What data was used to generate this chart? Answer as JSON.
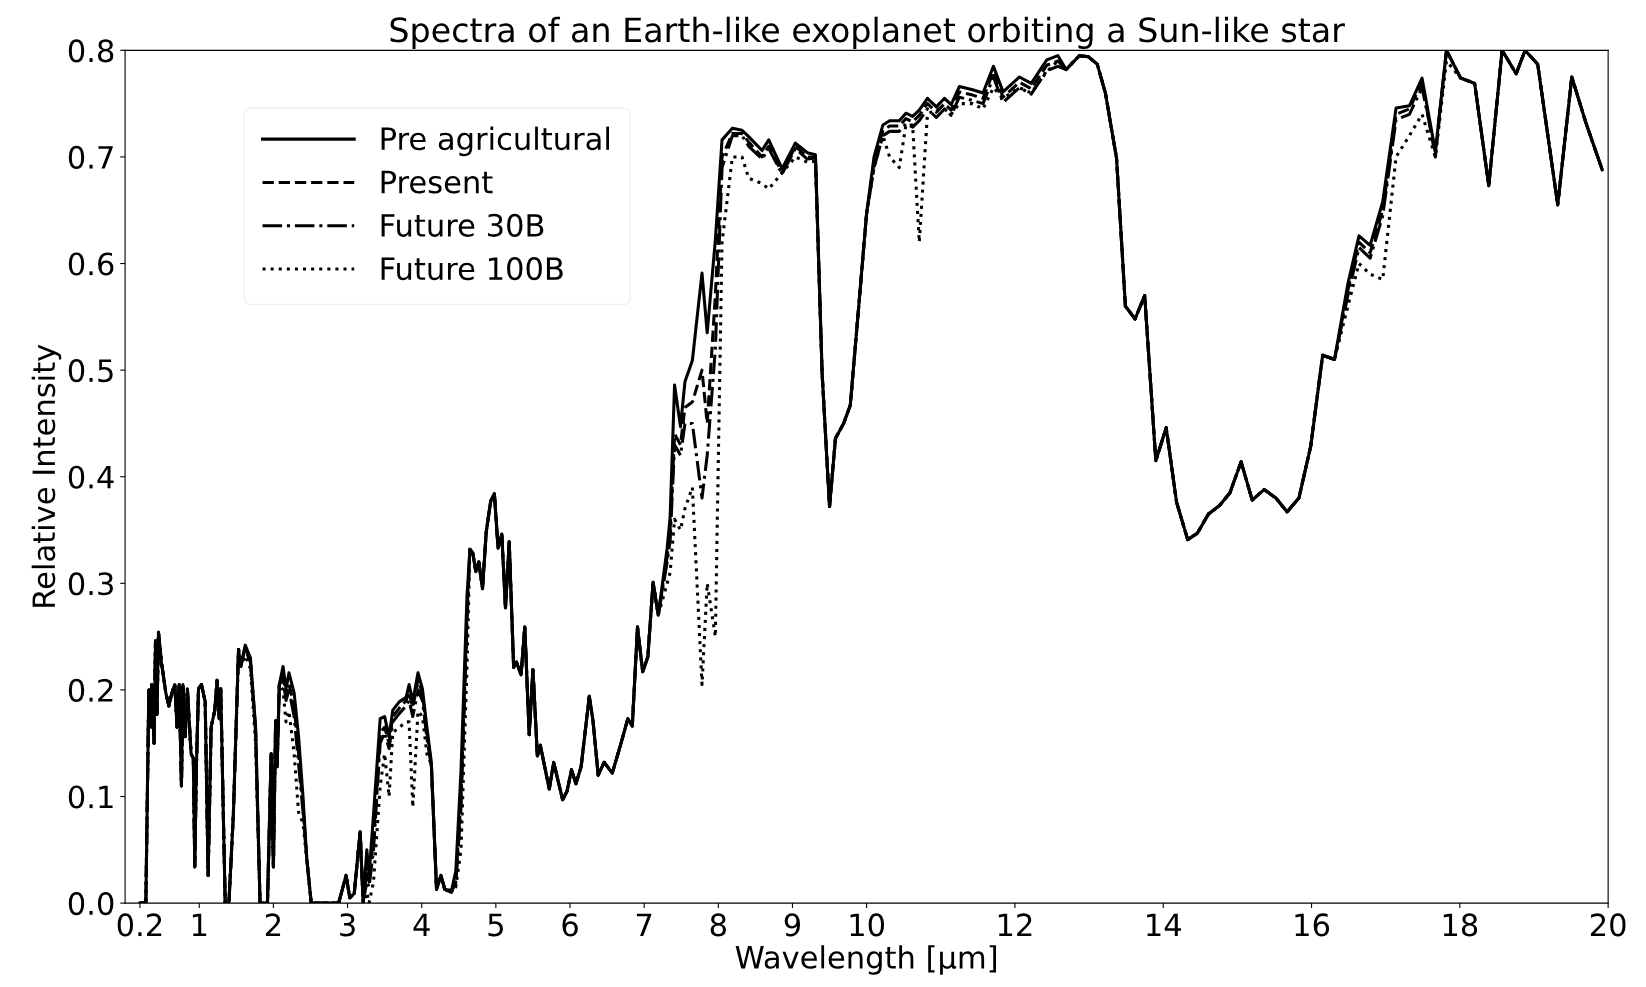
{
  "chart_data": {
    "type": "line",
    "title": "Spectra of an Earth-like exoplanet orbiting a Sun-like star",
    "xlabel": "Wavelength [μm]",
    "ylabel": "Relative Intensity",
    "x": [
      0.2,
      0.28,
      0.32,
      0.35,
      0.36,
      0.39,
      0.41,
      0.43,
      0.45,
      0.49,
      0.55,
      0.59,
      0.63,
      0.67,
      0.7,
      0.73,
      0.76,
      0.78,
      0.81,
      0.84,
      0.89,
      0.92,
      0.94,
      0.96,
      0.99,
      1.03,
      1.08,
      1.12,
      1.16,
      1.21,
      1.24,
      1.27,
      1.29,
      1.32,
      1.35,
      1.4,
      1.46,
      1.53,
      1.56,
      1.62,
      1.69,
      1.76,
      1.82,
      1.92,
      1.97,
      2.0,
      2.03,
      2.05,
      2.08,
      2.13,
      2.17,
      2.21,
      2.28,
      2.34,
      2.4,
      2.45,
      2.51,
      2.88,
      2.98,
      3.03,
      3.09,
      3.17,
      3.21,
      3.26,
      3.29,
      3.35,
      3.44,
      3.5,
      3.56,
      3.61,
      3.7,
      3.79,
      3.83,
      3.88,
      3.95,
      4.01,
      4.07,
      4.13,
      4.2,
      4.26,
      4.31,
      4.4,
      4.46,
      4.53,
      4.61,
      4.65,
      4.69,
      4.73,
      4.77,
      4.82,
      4.87,
      4.93,
      4.98,
      5.03,
      5.08,
      5.13,
      5.18,
      5.24,
      5.28,
      5.34,
      5.39,
      5.45,
      5.5,
      5.56,
      5.6,
      5.72,
      5.78,
      5.9,
      5.96,
      6.02,
      6.08,
      6.15,
      6.26,
      6.31,
      6.38,
      6.46,
      6.57,
      6.68,
      6.78,
      6.84,
      6.91,
      6.98,
      7.05,
      7.12,
      7.19,
      7.31,
      7.35,
      7.41,
      7.49,
      7.55,
      7.65,
      7.78,
      7.85,
      7.96,
      8.05,
      8.19,
      8.32,
      8.41,
      8.59,
      8.68,
      8.86,
      9.04,
      9.2,
      9.31,
      9.4,
      9.5,
      9.58,
      9.69,
      9.78,
      10.0,
      10.1,
      10.22,
      10.31,
      10.44,
      10.53,
      10.62,
      10.71,
      10.82,
      10.94,
      11.05,
      11.14,
      11.25,
      11.43,
      11.57,
      11.71,
      11.84,
      12.06,
      12.22,
      12.43,
      12.58,
      12.69,
      12.87,
      12.99,
      13.11,
      13.22,
      13.37,
      13.49,
      13.62,
      13.75,
      13.9,
      14.04,
      14.18,
      14.33,
      14.46,
      14.61,
      14.76,
      14.9,
      15.05,
      15.2,
      15.36,
      15.52,
      15.67,
      15.83,
      15.99,
      16.15,
      16.31,
      16.49,
      16.64,
      16.79,
      16.96,
      17.14,
      17.32,
      17.49,
      17.67,
      17.82,
      18.01,
      18.2,
      18.39,
      18.57,
      18.76,
      18.88,
      19.05,
      19.32,
      19.51,
      19.7,
      19.92
    ],
    "series": [
      {
        "name": "Pre agricultural",
        "color": "#000000",
        "line_style": "solid",
        "values": [
          0,
          0,
          0.2,
          0.165,
          0.205,
          0.15,
          0.246,
          0.177,
          0.254,
          0.226,
          0.197,
          0.185,
          0.197,
          0.205,
          0.165,
          0.205,
          0.11,
          0.205,
          0.156,
          0.201,
          0.14,
          0.136,
          0.034,
          0.124,
          0.201,
          0.205,
          0.189,
          0.026,
          0.165,
          0.181,
          0.209,
          0.173,
          0.201,
          0.099,
          0,
          0,
          0.083,
          0.238,
          0.222,
          0.242,
          0.23,
          0.165,
          0,
          0,
          0.14,
          0.034,
          0.171,
          0.128,
          0.205,
          0.222,
          0.201,
          0.216,
          0.197,
          0.156,
          0.099,
          0.042,
          0,
          0,
          0.026,
          0.005,
          0.009,
          0.067,
          0.001,
          0.05,
          0.026,
          0.083,
          0.173,
          0.175,
          0.156,
          0.181,
          0.189,
          0.193,
          0.205,
          0.189,
          0.216,
          0.201,
          0.165,
          0.132,
          0.013,
          0.026,
          0.013,
          0.011,
          0.03,
          0.124,
          0.287,
          0.332,
          0.328,
          0.311,
          0.32,
          0.295,
          0.348,
          0.377,
          0.384,
          0.333,
          0.346,
          0.277,
          0.339,
          0.221,
          0.226,
          0.214,
          0.259,
          0.158,
          0.219,
          0.138,
          0.148,
          0.107,
          0.132,
          0.097,
          0.105,
          0.125,
          0.112,
          0.128,
          0.194,
          0.171,
          0.12,
          0.132,
          0.122,
          0.148,
          0.173,
          0.166,
          0.259,
          0.217,
          0.231,
          0.301,
          0.27,
          0.333,
          0.362,
          0.486,
          0.447,
          0.489,
          0.509,
          0.591,
          0.535,
          0.622,
          0.716,
          0.727,
          0.725,
          0.719,
          0.706,
          0.716,
          0.689,
          0.713,
          0.704,
          0.702,
          0.497,
          0.372,
          0.436,
          0.45,
          0.467,
          0.647,
          0.7,
          0.73,
          0.734,
          0.734,
          0.741,
          0.738,
          0.744,
          0.755,
          0.747,
          0.755,
          0.749,
          0.766,
          0.763,
          0.76,
          0.785,
          0.761,
          0.775,
          0.769,
          0.791,
          0.795,
          0.782,
          0.795,
          0.794,
          0.787,
          0.76,
          0.699,
          0.56,
          0.548,
          0.57,
          0.415,
          0.446,
          0.376,
          0.341,
          0.347,
          0.365,
          0.373,
          0.385,
          0.414,
          0.378,
          0.388,
          0.38,
          0.367,
          0.38,
          0.429,
          0.514,
          0.51,
          0.581,
          0.626,
          0.617,
          0.658,
          0.746,
          0.748,
          0.774,
          0.705,
          0.8,
          0.774,
          0.769,
          0.673,
          0.8,
          0.778,
          0.8,
          0.787,
          0.655,
          0.775,
          0.732,
          0.688
        ]
      },
      {
        "name": "Present",
        "color": "#000000",
        "line_style": "dashed",
        "values": [
          0,
          0,
          0.2,
          0.165,
          0.205,
          0.15,
          0.246,
          0.177,
          0.254,
          0.226,
          0.197,
          0.185,
          0.197,
          0.205,
          0.165,
          0.205,
          0.11,
          0.205,
          0.156,
          0.201,
          0.14,
          0.136,
          0.034,
          0.124,
          0.201,
          0.205,
          0.189,
          0.026,
          0.165,
          0.181,
          0.209,
          0.173,
          0.201,
          0.099,
          0,
          0,
          0.083,
          0.238,
          0.222,
          0.24,
          0.228,
          0.163,
          0,
          0,
          0.14,
          0.034,
          0.171,
          0.128,
          0.205,
          0.215,
          0.195,
          0.205,
          0.185,
          0.14,
          0.09,
          0.042,
          0,
          0,
          0.026,
          0.005,
          0.009,
          0.067,
          0.001,
          0.03,
          0.02,
          0.06,
          0.16,
          0.165,
          0.15,
          0.175,
          0.183,
          0.19,
          0.198,
          0.183,
          0.21,
          0.196,
          0.16,
          0.13,
          0.013,
          0.026,
          0.013,
          0.01,
          0.02,
          0.1,
          0.27,
          0.332,
          0.328,
          0.311,
          0.32,
          0.295,
          0.348,
          0.377,
          0.384,
          0.333,
          0.346,
          0.277,
          0.339,
          0.221,
          0.226,
          0.214,
          0.259,
          0.158,
          0.219,
          0.138,
          0.148,
          0.107,
          0.132,
          0.097,
          0.105,
          0.125,
          0.112,
          0.128,
          0.194,
          0.171,
          0.12,
          0.132,
          0.122,
          0.148,
          0.173,
          0.166,
          0.259,
          0.217,
          0.231,
          0.301,
          0.27,
          0.325,
          0.35,
          0.44,
          0.43,
          0.465,
          0.47,
          0.5,
          0.45,
          0.57,
          0.7,
          0.722,
          0.722,
          0.714,
          0.7,
          0.71,
          0.685,
          0.71,
          0.7,
          0.7,
          0.497,
          0.372,
          0.436,
          0.45,
          0.467,
          0.647,
          0.695,
          0.725,
          0.729,
          0.729,
          0.736,
          0.733,
          0.739,
          0.75,
          0.742,
          0.75,
          0.744,
          0.761,
          0.758,
          0.755,
          0.78,
          0.756,
          0.77,
          0.764,
          0.786,
          0.79,
          0.782,
          0.795,
          0.794,
          0.787,
          0.76,
          0.699,
          0.56,
          0.548,
          0.57,
          0.415,
          0.446,
          0.376,
          0.341,
          0.347,
          0.365,
          0.373,
          0.385,
          0.414,
          0.378,
          0.388,
          0.38,
          0.367,
          0.38,
          0.429,
          0.514,
          0.51,
          0.575,
          0.62,
          0.61,
          0.65,
          0.74,
          0.745,
          0.77,
          0.7,
          0.8,
          0.774,
          0.769,
          0.673,
          0.8,
          0.778,
          0.8,
          0.787,
          0.655,
          0.775,
          0.732,
          0.688
        ]
      },
      {
        "name": "Future 30B",
        "color": "#000000",
        "line_style": "dashdot",
        "values": [
          0,
          0,
          0.2,
          0.165,
          0.205,
          0.15,
          0.246,
          0.177,
          0.254,
          0.226,
          0.197,
          0.185,
          0.197,
          0.205,
          0.165,
          0.205,
          0.11,
          0.205,
          0.156,
          0.201,
          0.14,
          0.136,
          0.034,
          0.124,
          0.201,
          0.205,
          0.189,
          0.026,
          0.165,
          0.181,
          0.209,
          0.173,
          0.201,
          0.099,
          0,
          0,
          0.083,
          0.238,
          0.222,
          0.238,
          0.226,
          0.16,
          0,
          0,
          0.14,
          0.034,
          0.171,
          0.128,
          0.205,
          0.21,
          0.19,
          0.2,
          0.175,
          0.13,
          0.085,
          0.042,
          0,
          0,
          0.026,
          0.005,
          0.009,
          0.067,
          0.001,
          0.02,
          0.015,
          0.05,
          0.15,
          0.16,
          0.145,
          0.17,
          0.178,
          0.185,
          0.19,
          0.175,
          0.2,
          0.19,
          0.155,
          0.128,
          0.013,
          0.026,
          0.013,
          0.01,
          0.018,
          0.09,
          0.26,
          0.332,
          0.328,
          0.311,
          0.32,
          0.295,
          0.348,
          0.377,
          0.384,
          0.333,
          0.346,
          0.277,
          0.339,
          0.221,
          0.226,
          0.214,
          0.259,
          0.158,
          0.219,
          0.138,
          0.148,
          0.107,
          0.132,
          0.097,
          0.105,
          0.125,
          0.112,
          0.128,
          0.194,
          0.171,
          0.12,
          0.132,
          0.122,
          0.148,
          0.173,
          0.166,
          0.259,
          0.217,
          0.231,
          0.301,
          0.27,
          0.32,
          0.34,
          0.43,
          0.42,
          0.45,
          0.45,
          0.38,
          0.42,
          0.52,
          0.69,
          0.72,
          0.72,
          0.71,
          0.698,
          0.708,
          0.684,
          0.708,
          0.698,
          0.699,
          0.497,
          0.372,
          0.436,
          0.45,
          0.467,
          0.647,
          0.69,
          0.72,
          0.724,
          0.724,
          0.731,
          0.728,
          0.734,
          0.745,
          0.737,
          0.745,
          0.739,
          0.756,
          0.753,
          0.75,
          0.775,
          0.751,
          0.765,
          0.759,
          0.781,
          0.785,
          0.782,
          0.795,
          0.794,
          0.787,
          0.76,
          0.699,
          0.56,
          0.548,
          0.57,
          0.415,
          0.446,
          0.376,
          0.341,
          0.347,
          0.365,
          0.373,
          0.385,
          0.414,
          0.378,
          0.388,
          0.38,
          0.367,
          0.38,
          0.429,
          0.514,
          0.51,
          0.57,
          0.615,
          0.605,
          0.645,
          0.735,
          0.74,
          0.765,
          0.705,
          0.8,
          0.774,
          0.769,
          0.673,
          0.8,
          0.778,
          0.8,
          0.787,
          0.655,
          0.775,
          0.732,
          0.688
        ]
      },
      {
        "name": "Future 100B",
        "color": "#000000",
        "line_style": "dotted",
        "values": [
          0,
          0,
          0.2,
          0.165,
          0.205,
          0.15,
          0.246,
          0.177,
          0.254,
          0.226,
          0.197,
          0.185,
          0.197,
          0.205,
          0.165,
          0.205,
          0.11,
          0.205,
          0.156,
          0.201,
          0.14,
          0.136,
          0.034,
          0.124,
          0.201,
          0.205,
          0.189,
          0.026,
          0.165,
          0.181,
          0.209,
          0.173,
          0.201,
          0.099,
          0,
          0,
          0.083,
          0.238,
          0.222,
          0.232,
          0.22,
          0.15,
          0,
          0,
          0.14,
          0.034,
          0.171,
          0.128,
          0.205,
          0.2,
          0.17,
          0.18,
          0.14,
          0.085,
          0.075,
          0.04,
          0,
          0,
          0.026,
          0.005,
          0.009,
          0.067,
          0.001,
          0.01,
          0,
          0.02,
          0.11,
          0.14,
          0.1,
          0.16,
          0.165,
          0.17,
          0.17,
          0.09,
          0.18,
          0.175,
          0.14,
          0.13,
          0.013,
          0.026,
          0.013,
          0.012,
          0.015,
          0.05,
          0.22,
          0.332,
          0.328,
          0.311,
          0.32,
          0.295,
          0.348,
          0.377,
          0.384,
          0.333,
          0.346,
          0.277,
          0.339,
          0.221,
          0.226,
          0.214,
          0.259,
          0.158,
          0.219,
          0.138,
          0.148,
          0.107,
          0.132,
          0.097,
          0.105,
          0.125,
          0.112,
          0.128,
          0.194,
          0.171,
          0.12,
          0.132,
          0.122,
          0.148,
          0.173,
          0.166,
          0.259,
          0.217,
          0.231,
          0.301,
          0.27,
          0.3,
          0.31,
          0.36,
          0.35,
          0.37,
          0.39,
          0.205,
          0.3,
          0.25,
          0.62,
          0.7,
          0.7,
          0.68,
          0.675,
          0.67,
          0.685,
          0.7,
          0.695,
          0.696,
          0.497,
          0.372,
          0.436,
          0.45,
          0.467,
          0.647,
          0.69,
          0.72,
          0.7,
          0.69,
          0.73,
          0.73,
          0.62,
          0.74,
          0.745,
          0.745,
          0.74,
          0.75,
          0.75,
          0.745,
          0.765,
          0.755,
          0.765,
          0.76,
          0.78,
          0.79,
          0.782,
          0.795,
          0.794,
          0.787,
          0.76,
          0.699,
          0.56,
          0.548,
          0.57,
          0.415,
          0.446,
          0.376,
          0.341,
          0.347,
          0.365,
          0.373,
          0.385,
          0.414,
          0.378,
          0.388,
          0.38,
          0.367,
          0.38,
          0.429,
          0.514,
          0.51,
          0.56,
          0.6,
          0.59,
          0.585,
          0.7,
          0.72,
          0.74,
          0.7,
          0.79,
          0.774,
          0.769,
          0.673,
          0.8,
          0.778,
          0.8,
          0.787,
          0.655,
          0.775,
          0.732,
          0.688
        ]
      }
    ],
    "xlim": [
      0,
      20
    ],
    "ylim": [
      0,
      0.8
    ],
    "xticks": [
      0.2,
      1,
      2,
      3,
      4,
      5,
      6,
      7,
      8,
      9,
      10,
      12,
      14,
      16,
      18,
      20
    ],
    "yticks": [
      {
        "value": 0,
        "label": "0.0"
      },
      {
        "value": 0.1,
        "label": "0.1"
      },
      {
        "value": 0.2,
        "label": "0.2"
      },
      {
        "value": 0.3,
        "label": "0.3"
      },
      {
        "value": 0.4,
        "label": "0.4"
      },
      {
        "value": 0.5,
        "label": "0.5"
      },
      {
        "value": 0.6,
        "label": "0.6"
      },
      {
        "value": 0.7,
        "label": "0.7"
      },
      {
        "value": 0.8,
        "label": "0.8"
      }
    ],
    "grid": false,
    "legend": "top left",
    "marker": "none"
  }
}
